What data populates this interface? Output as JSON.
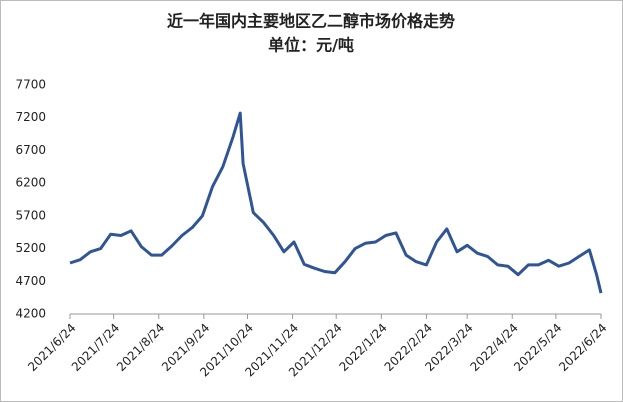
{
  "chart_data": {
    "type": "line",
    "title": "近一年国内主要地区乙二醇市场价格走势",
    "subtitle": "单位：元/吨",
    "x": [
      "2021/6/24",
      "2021/7/1",
      "2021/7/8",
      "2021/7/15",
      "2021/7/22",
      "2021/7/29",
      "2021/8/5",
      "2021/8/12",
      "2021/8/19",
      "2021/8/26",
      "2021/9/2",
      "2021/9/9",
      "2021/9/16",
      "2021/9/23",
      "2021/9/30",
      "2021/10/7",
      "2021/10/14",
      "2021/10/19",
      "2021/10/21",
      "2021/10/28",
      "2021/11/4",
      "2021/11/11",
      "2021/11/18",
      "2021/11/25",
      "2021/12/2",
      "2021/12/9",
      "2021/12/16",
      "2021/12/23",
      "2021/12/30",
      "2022/1/6",
      "2022/1/13",
      "2022/1/20",
      "2022/1/27",
      "2022/2/3",
      "2022/2/10",
      "2022/2/17",
      "2022/2/24",
      "2022/3/3",
      "2022/3/10",
      "2022/3/17",
      "2022/3/24",
      "2022/3/31",
      "2022/4/7",
      "2022/4/14",
      "2022/4/21",
      "2022/4/28",
      "2022/5/5",
      "2022/5/12",
      "2022/5/19",
      "2022/5/26",
      "2022/6/2",
      "2022/6/9",
      "2022/6/16",
      "2022/6/21",
      "2022/6/24"
    ],
    "values": [
      4980,
      5030,
      5150,
      5200,
      5420,
      5400,
      5470,
      5230,
      5100,
      5100,
      5240,
      5400,
      5520,
      5700,
      6150,
      6450,
      6900,
      7270,
      6500,
      5750,
      5600,
      5400,
      5150,
      5300,
      4960,
      4900,
      4850,
      4830,
      5000,
      5200,
      5280,
      5300,
      5400,
      5440,
      5100,
      5000,
      4950,
      5300,
      5500,
      5150,
      5250,
      5130,
      5080,
      4950,
      4930,
      4800,
      4950,
      4950,
      5020,
      4930,
      4980,
      5080,
      5180,
      4800,
      4520
    ],
    "color": "#2f5597",
    "xlim": [
      "2021/6/24",
      "2022/6/24"
    ],
    "xticks": [
      "2021/6/24",
      "2021/7/24",
      "2021/8/24",
      "2021/9/24",
      "2021/10/24",
      "2021/11/24",
      "2021/12/24",
      "2022/1/24",
      "2022/2/24",
      "2022/3/24",
      "2022/4/24",
      "2022/5/24",
      "2022/6/24"
    ],
    "ylim": [
      4200,
      7700
    ],
    "yticks": [
      4200,
      4700,
      5200,
      5700,
      6200,
      6700,
      7200,
      7700
    ],
    "grid": false
  }
}
